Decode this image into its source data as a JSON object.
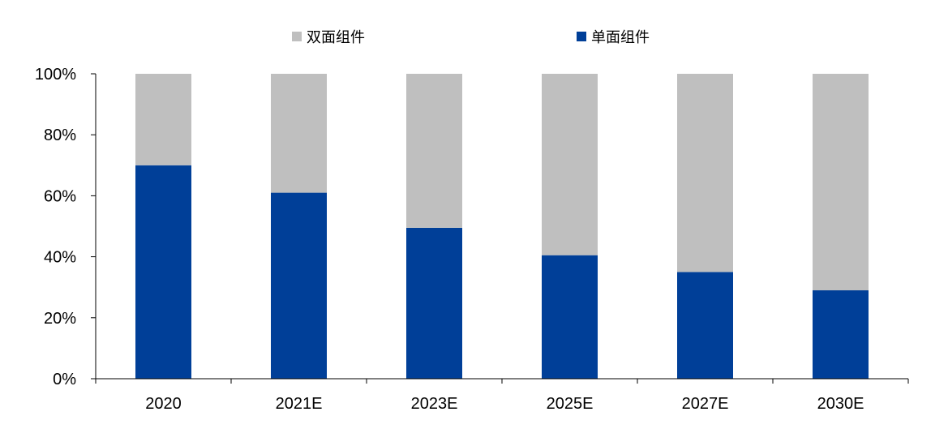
{
  "chart_data": {
    "type": "bar",
    "stacked": true,
    "categories": [
      "2020",
      "2021E",
      "2023E",
      "2025E",
      "2027E",
      "2030E"
    ],
    "series": [
      {
        "name": "单面组件",
        "color": "#003F98",
        "values": [
          70,
          61,
          49.5,
          40.5,
          35,
          29
        ]
      },
      {
        "name": "双面组件",
        "color": "#BFBFBF",
        "values": [
          30,
          39,
          50.5,
          59.5,
          65,
          71
        ]
      }
    ],
    "yticks": [
      "0%",
      "20%",
      "40%",
      "60%",
      "80%",
      "100%"
    ],
    "ylim": [
      0,
      100
    ],
    "legend_position": "top-center",
    "grid": false
  }
}
